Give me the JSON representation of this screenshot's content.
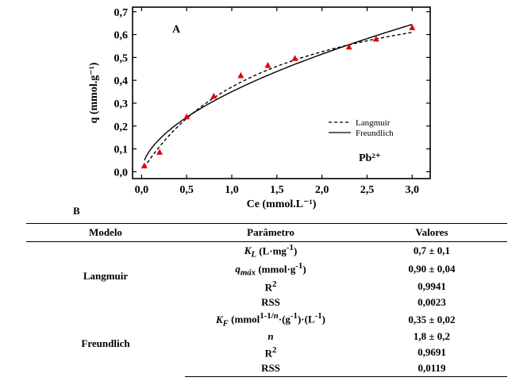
{
  "chart_data": {
    "type": "scatter",
    "panel_label": "A",
    "annotation": "Pb²⁺",
    "xlabel": "Ce (mmol.L⁻¹)",
    "ylabel": "q (mmol.g⁻¹)",
    "xlim": [
      -0.1,
      3.2
    ],
    "ylim": [
      -0.03,
      0.72
    ],
    "x_ticks": [
      0.0,
      0.5,
      1.0,
      1.5,
      2.0,
      2.5,
      3.0
    ],
    "x_tick_labels": [
      "0,0",
      "0,5",
      "1,0",
      "1,5",
      "2,0",
      "2,5",
      "3,0"
    ],
    "y_ticks": [
      0.0,
      0.1,
      0.2,
      0.3,
      0.4,
      0.5,
      0.6,
      0.7
    ],
    "y_tick_labels": [
      "0,0",
      "0,1",
      "0,2",
      "0,3",
      "0,4",
      "0,5",
      "0,6",
      "0,7"
    ],
    "points": [
      {
        "x": 0.03,
        "y": 0.025
      },
      {
        "x": 0.2,
        "y": 0.085
      },
      {
        "x": 0.5,
        "y": 0.24
      },
      {
        "x": 0.8,
        "y": 0.33
      },
      {
        "x": 1.1,
        "y": 0.42
      },
      {
        "x": 1.4,
        "y": 0.465
      },
      {
        "x": 1.7,
        "y": 0.495
      },
      {
        "x": 2.3,
        "y": 0.545
      },
      {
        "x": 2.6,
        "y": 0.58
      },
      {
        "x": 3.0,
        "y": 0.63
      }
    ],
    "point_color": "#e3000f",
    "series": [
      {
        "name": "Langmuir",
        "style": "dashed",
        "model": "langmuir",
        "KL": 0.7,
        "qmax": 0.9
      },
      {
        "name": "Freundlich",
        "style": "solid",
        "model": "freundlich",
        "KF": 0.35,
        "n": 1.8
      }
    ],
    "legend_position": "bottom-right",
    "grid": false
  },
  "table": {
    "panel_label": "B",
    "headers": [
      "Modelo",
      "Parâmetro",
      "Valores"
    ],
    "models": [
      {
        "name": "Langmuir",
        "rows": [
          {
            "param": "K_L (L·mg⁻¹)",
            "value": "0,7 ± 0,1"
          },
          {
            "param": "q_máx (mmol·g⁻¹)",
            "value": "0,90 ± 0,04"
          },
          {
            "param": "R²",
            "value": "0,9941"
          },
          {
            "param": "RSS",
            "value": "0,0023"
          }
        ]
      },
      {
        "name": "Freundlich",
        "rows": [
          {
            "param": "K_F (mmol^(1−1/n)·(g⁻¹)·(L⁻¹)",
            "value": "0,35 ± 0,02"
          },
          {
            "param": "n",
            "value": "1,8 ± 0,2"
          },
          {
            "param": "R²",
            "value": "0,9691"
          },
          {
            "param": "RSS",
            "value": "0,0119"
          }
        ]
      }
    ]
  }
}
